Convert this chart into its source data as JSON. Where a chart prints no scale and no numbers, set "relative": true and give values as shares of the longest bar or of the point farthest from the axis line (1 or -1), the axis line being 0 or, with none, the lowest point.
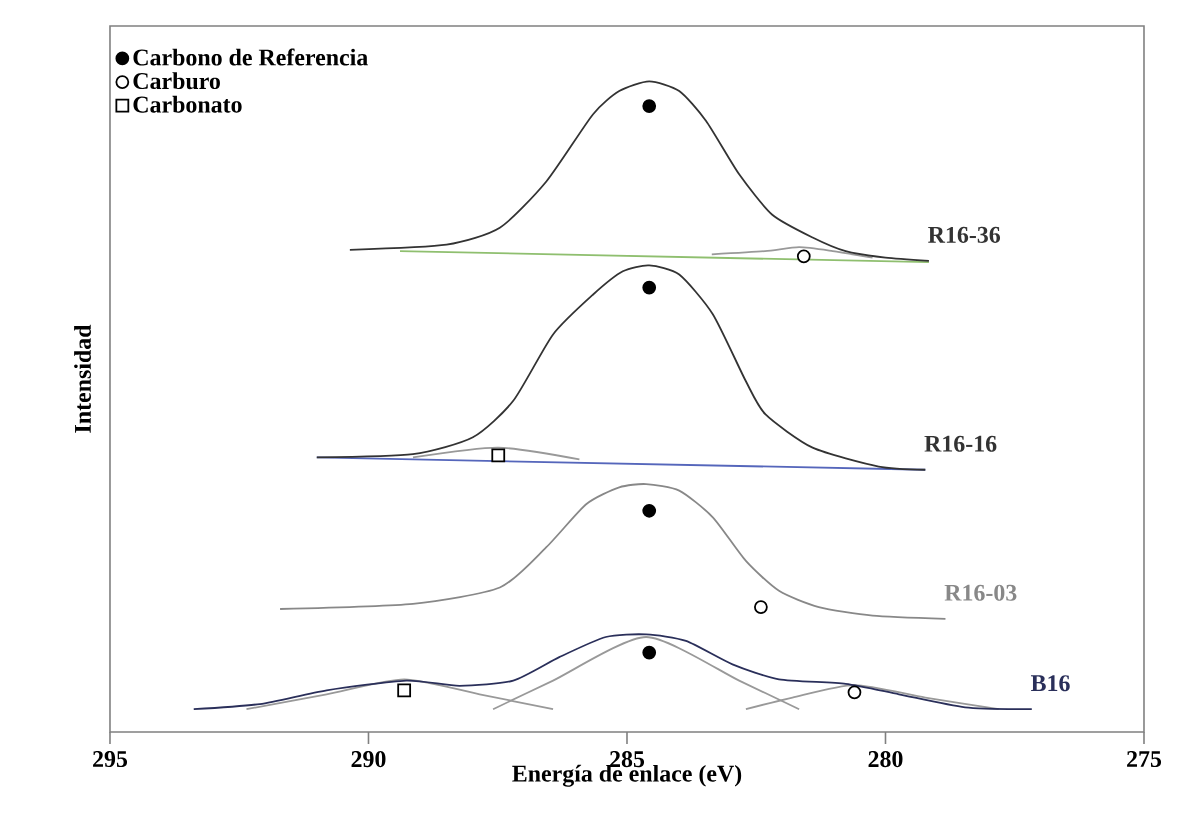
{
  "chart_data": {
    "type": "line",
    "relative": true,
    "xlabel": "Energía de enlace (eV)",
    "ylabel": "Intensidad",
    "xlim": [
      295,
      275
    ],
    "xticks": [
      295,
      290,
      285,
      280,
      275
    ],
    "legend": "top left",
    "series": [
      {
        "name": "R16-36",
        "color": "#333333",
        "x": [
          290.36,
          288.49,
          287.46,
          286.56,
          285.66,
          285.15,
          284.57,
          283.99,
          283.47,
          282.83,
          282.19,
          281.41,
          280.77,
          280.0,
          279.16
        ],
        "values": [
          0.741,
          0.749,
          0.775,
          0.846,
          0.949,
          0.985,
          1.0,
          0.985,
          0.939,
          0.857,
          0.795,
          0.76,
          0.739,
          0.729,
          0.724
        ]
      },
      {
        "color": "#8fbf6f",
        "x": [
          289.39,
          279.16
        ],
        "values": [
          0.739,
          0.722
        ]
      },
      {
        "color": "#999999",
        "x": [
          283.36,
          282.33,
          281.67,
          281.02,
          280.25
        ],
        "values": [
          0.734,
          0.739,
          0.745,
          0.739,
          0.729
        ]
      },
      {
        "name": "R16-16",
        "color": "#333333",
        "x": [
          291.0,
          289.14,
          287.98,
          287.2,
          286.43,
          285.66,
          285.08,
          284.57,
          283.99,
          283.34,
          282.7,
          282.32,
          281.41,
          280.13,
          279.23
        ],
        "values": [
          0.422,
          0.427,
          0.453,
          0.509,
          0.611,
          0.672,
          0.708,
          0.717,
          0.703,
          0.642,
          0.539,
          0.488,
          0.437,
          0.408,
          0.403
        ]
      },
      {
        "color": "#5566bb",
        "x": [
          291.0,
          279.23
        ],
        "values": [
          0.422,
          0.403
        ]
      },
      {
        "color": "#999999",
        "x": [
          289.14,
          287.49,
          285.92
        ],
        "values": [
          0.422,
          0.437,
          0.419
        ]
      },
      {
        "name": "R16-03",
        "color": "#888888",
        "x": [
          291.71,
          289.14,
          287.46,
          286.56,
          285.79,
          285.15,
          284.63,
          283.99,
          283.34,
          282.7,
          282.06,
          281.29,
          280.25,
          278.84
        ],
        "values": [
          0.189,
          0.197,
          0.222,
          0.284,
          0.35,
          0.376,
          0.381,
          0.371,
          0.33,
          0.263,
          0.217,
          0.192,
          0.179,
          0.174
        ]
      },
      {
        "name": "B16",
        "color": "#2a2f5a",
        "x": [
          293.38,
          292.1,
          290.81,
          289.27,
          288.24,
          287.2,
          286.31,
          285.41,
          284.63,
          283.86,
          282.96,
          282.06,
          280.77,
          279.74,
          278.46,
          277.17
        ],
        "values": [
          0.035,
          0.043,
          0.064,
          0.079,
          0.071,
          0.079,
          0.115,
          0.146,
          0.15,
          0.14,
          0.104,
          0.081,
          0.074,
          0.058,
          0.038,
          0.035
        ]
      },
      {
        "color": "#999999",
        "x": [
          292.36,
          290.81,
          289.31,
          287.85,
          286.43
        ],
        "values": [
          0.035,
          0.058,
          0.081,
          0.058,
          0.035
        ]
      },
      {
        "color": "#999999",
        "x": [
          287.59,
          286.43,
          284.63,
          282.83,
          281.67
        ],
        "values": [
          0.035,
          0.079,
          0.146,
          0.079,
          0.035
        ]
      },
      {
        "color": "#999999",
        "x": [
          282.7,
          281.8,
          280.6,
          279.23,
          277.81
        ],
        "values": [
          0.035,
          0.053,
          0.072,
          0.053,
          0.035
        ]
      },
      {
        "name": "Carbono de Referencia",
        "type": "scatter",
        "marker": "circle",
        "color": "#000000",
        "x": [
          284.57,
          284.57,
          284.57,
          284.57
        ],
        "values": [
          0.962,
          0.683,
          0.34,
          0.122
        ]
      },
      {
        "name": "Carburo",
        "type": "scatter",
        "marker": "circle",
        "color": "#ffffff",
        "x": [
          281.58,
          282.41,
          280.6
        ],
        "values": [
          0.731,
          0.192,
          0.061
        ]
      },
      {
        "name": "Carbonato",
        "type": "scatter",
        "marker": "square",
        "color": "#ffffff",
        "x": [
          287.49,
          289.31
        ],
        "values": [
          0.425,
          0.064
        ]
      }
    ]
  }
}
